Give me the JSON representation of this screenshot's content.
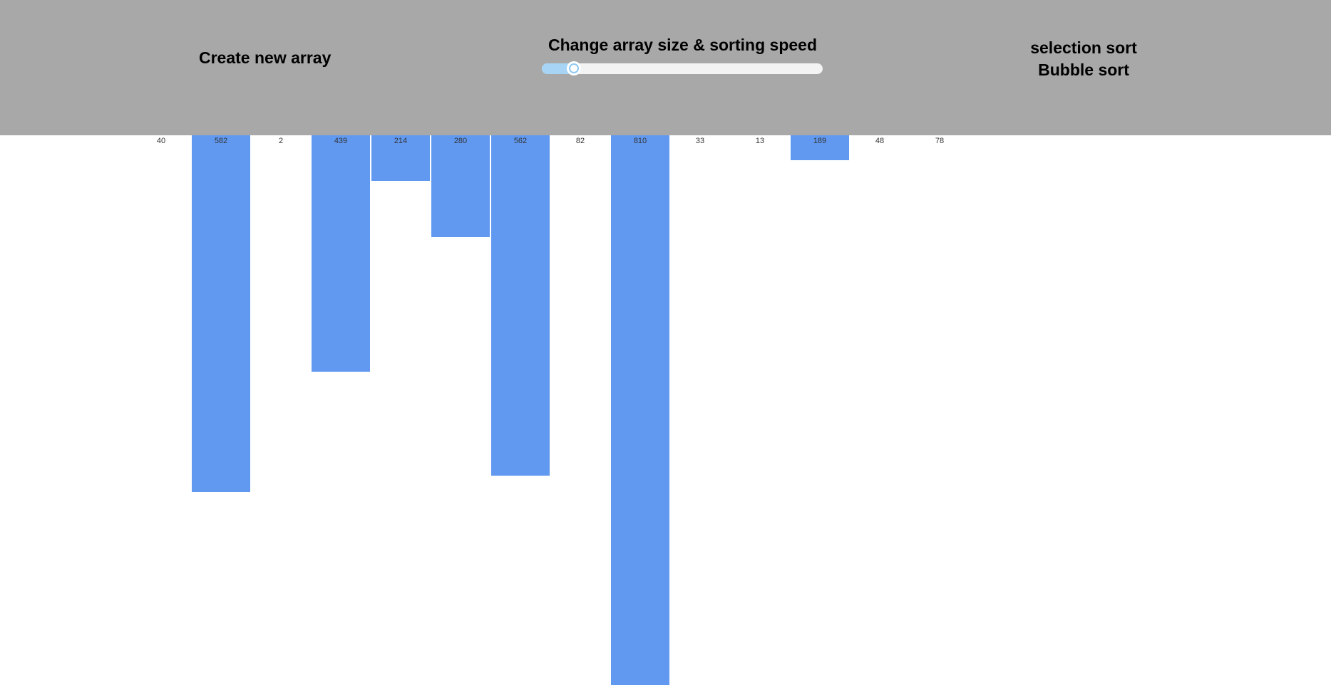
{
  "toolbar": {
    "background": "#a8a8a8",
    "create_label": "Create new array",
    "slider_title": "Change array size & sorting speed",
    "slider_value": 0.1,
    "algorithms": [
      "selection sort",
      "Bubble sort"
    ]
  },
  "bar_color": "#6199f1",
  "array_values": [
    40,
    582,
    2,
    439,
    214,
    280,
    562,
    82,
    810,
    33,
    13,
    189,
    48,
    78
  ]
}
